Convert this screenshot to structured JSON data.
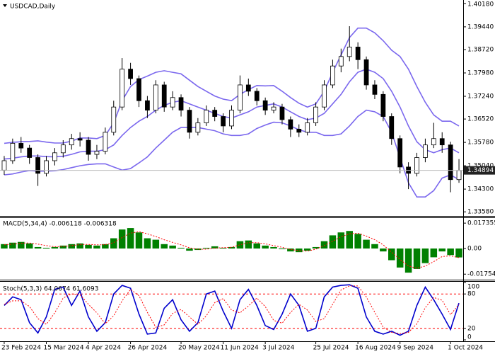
{
  "chart_data": [
    {
      "type": "candlestick",
      "title": "USDCAD,Daily",
      "xlim": [
        -0.5,
        54.5
      ],
      "xticks": [
        {
          "value": 0,
          "label": "23 Feb 2024"
        },
        {
          "value": 5,
          "label": "15 Mar 2024"
        },
        {
          "value": 10,
          "label": "4 Apr 2024"
        },
        {
          "value": 15,
          "label": "26 Apr 2024"
        },
        {
          "value": 21,
          "label": "20 May 2024"
        },
        {
          "value": 26,
          "label": "11 Jun 2024"
        },
        {
          "value": 31,
          "label": "3 Jul 2024"
        },
        {
          "value": 37,
          "label": "25 Jul 2024"
        },
        {
          "value": 42,
          "label": "16 Aug 2024"
        },
        {
          "value": 47,
          "label": "9 Sep 2024"
        },
        {
          "value": 53,
          "label": "1 Oct 2024"
        }
      ],
      "ylim": [
        1.3345,
        1.4029
      ],
      "yticks": [
        {
          "value": 1.4018,
          "label": "1.40180"
        },
        {
          "value": 1.3944,
          "label": "1.39440"
        },
        {
          "value": 1.3872,
          "label": "1.38720"
        },
        {
          "value": 1.3798,
          "label": "1.37980"
        },
        {
          "value": 1.3724,
          "label": "1.37240"
        },
        {
          "value": 1.3652,
          "label": "1.36520"
        },
        {
          "value": 1.3578,
          "label": "1.35780"
        },
        {
          "value": 1.3504,
          "label": "1.35040"
        },
        {
          "value": 1.343,
          "label": "1.34300"
        },
        {
          "value": 1.3358,
          "label": "1.33580"
        }
      ],
      "last_price": 1.34894,
      "band_color": "#7b68ee",
      "open": [
        1.349,
        1.352,
        1.3575,
        1.356,
        1.353,
        1.348,
        1.352,
        1.3545,
        1.357,
        1.359,
        1.3585,
        1.354,
        1.355,
        1.361,
        1.369,
        1.381,
        1.378,
        1.371,
        1.368,
        1.376,
        1.369,
        1.372,
        1.368,
        1.361,
        1.364,
        1.368,
        1.366,
        1.363,
        1.368,
        1.376,
        1.374,
        1.371,
        1.368,
        1.369,
        1.365,
        1.362,
        1.361,
        1.364,
        1.369,
        1.376,
        1.382,
        1.385,
        1.388,
        1.384,
        1.376,
        1.373,
        1.366,
        1.359,
        1.35,
        1.348,
        1.353,
        1.357,
        1.359,
        1.357,
        1.346
      ],
      "high": [
        1.3535,
        1.359,
        1.3595,
        1.357,
        1.354,
        1.3535,
        1.356,
        1.3585,
        1.3605,
        1.361,
        1.3595,
        1.357,
        1.3625,
        1.371,
        1.3845,
        1.383,
        1.379,
        1.3725,
        1.3775,
        1.377,
        1.374,
        1.373,
        1.369,
        1.3655,
        1.3695,
        1.369,
        1.367,
        1.3695,
        1.379,
        1.378,
        1.375,
        1.372,
        1.3705,
        1.37,
        1.366,
        1.3635,
        1.3655,
        1.3705,
        1.3775,
        1.384,
        1.3875,
        1.3946,
        1.3895,
        1.385,
        1.3775,
        1.374,
        1.367,
        1.36,
        1.3515,
        1.3545,
        1.359,
        1.364,
        1.361,
        1.358,
        1.3525
      ],
      "low": [
        1.3475,
        1.351,
        1.3545,
        1.351,
        1.344,
        1.347,
        1.3505,
        1.353,
        1.3555,
        1.3565,
        1.352,
        1.3525,
        1.354,
        1.36,
        1.368,
        1.376,
        1.369,
        1.3655,
        1.367,
        1.3675,
        1.368,
        1.366,
        1.359,
        1.36,
        1.363,
        1.3645,
        1.361,
        1.362,
        1.367,
        1.3725,
        1.3695,
        1.3665,
        1.367,
        1.3635,
        1.3595,
        1.3595,
        1.36,
        1.363,
        1.368,
        1.375,
        1.38,
        1.3835,
        1.381,
        1.3745,
        1.3715,
        1.3645,
        1.357,
        1.348,
        1.343,
        1.347,
        1.3515,
        1.356,
        1.3545,
        1.342,
        1.345
      ],
      "close": [
        1.352,
        1.3575,
        1.356,
        1.353,
        1.348,
        1.352,
        1.3545,
        1.357,
        1.359,
        1.3585,
        1.354,
        1.355,
        1.361,
        1.369,
        1.381,
        1.378,
        1.371,
        1.368,
        1.376,
        1.369,
        1.372,
        1.368,
        1.361,
        1.364,
        1.368,
        1.366,
        1.363,
        1.368,
        1.376,
        1.374,
        1.371,
        1.368,
        1.369,
        1.365,
        1.362,
        1.361,
        1.364,
        1.369,
        1.376,
        1.382,
        1.385,
        1.388,
        1.384,
        1.376,
        1.373,
        1.366,
        1.359,
        1.35,
        1.348,
        1.353,
        1.357,
        1.359,
        1.357,
        1.346,
        1.3489
      ],
      "upper": [
        1.3575,
        1.3578,
        1.358,
        1.3581,
        1.3583,
        1.3579,
        1.3576,
        1.3576,
        1.3582,
        1.3592,
        1.3592,
        1.359,
        1.36,
        1.364,
        1.371,
        1.3755,
        1.3777,
        1.3788,
        1.38,
        1.3805,
        1.38,
        1.3795,
        1.3775,
        1.3755,
        1.374,
        1.3725,
        1.3715,
        1.371,
        1.373,
        1.3745,
        1.3758,
        1.3757,
        1.3758,
        1.374,
        1.372,
        1.3702,
        1.369,
        1.37,
        1.374,
        1.38,
        1.3855,
        1.391,
        1.394,
        1.394,
        1.3925,
        1.39,
        1.387,
        1.385,
        1.381,
        1.3755,
        1.3705,
        1.3665,
        1.3645,
        1.3645,
        1.363
      ],
      "middle": [
        1.3525,
        1.3528,
        1.3532,
        1.3535,
        1.3535,
        1.3533,
        1.3532,
        1.3534,
        1.354,
        1.3548,
        1.355,
        1.355,
        1.3555,
        1.357,
        1.36,
        1.3625,
        1.3645,
        1.366,
        1.368,
        1.3695,
        1.3705,
        1.371,
        1.37,
        1.369,
        1.368,
        1.367,
        1.366,
        1.3655,
        1.3665,
        1.3675,
        1.369,
        1.3695,
        1.37,
        1.369,
        1.3675,
        1.366,
        1.365,
        1.3655,
        1.367,
        1.37,
        1.373,
        1.377,
        1.38,
        1.381,
        1.38,
        1.378,
        1.374,
        1.369,
        1.363,
        1.358,
        1.3555,
        1.3545,
        1.3555,
        1.356,
        1.3545
      ],
      "lower": [
        1.3475,
        1.3478,
        1.3484,
        1.3489,
        1.3487,
        1.3487,
        1.3488,
        1.3492,
        1.3498,
        1.3504,
        1.3508,
        1.351,
        1.351,
        1.35,
        1.349,
        1.3495,
        1.3513,
        1.3532,
        1.356,
        1.3585,
        1.361,
        1.3625,
        1.3625,
        1.3625,
        1.362,
        1.3615,
        1.3605,
        1.36,
        1.36,
        1.3605,
        1.3622,
        1.3633,
        1.3642,
        1.364,
        1.363,
        1.3618,
        1.361,
        1.361,
        1.36,
        1.36,
        1.3605,
        1.363,
        1.366,
        1.368,
        1.3675,
        1.366,
        1.361,
        1.353,
        1.345,
        1.3405,
        1.3405,
        1.3425,
        1.3465,
        1.3475,
        1.346
      ]
    },
    {
      "type": "macd",
      "title": "MACD(5,34,4) -0.006118 -0.006318",
      "ylim": [
        -0.0213,
        0.0213
      ],
      "yticks": [
        0.017355,
        {
          "value": 0,
          "label": "0.00"
        },
        -0.017542
      ],
      "color": "#008000",
      "signal_color": "#ff0000",
      "histogram": [
        0.003,
        0.004,
        0.0045,
        0.0035,
        0.001,
        0.0005,
        0.001,
        0.002,
        0.003,
        0.0035,
        0.0025,
        0.002,
        0.003,
        0.007,
        0.013,
        0.014,
        0.011,
        0.007,
        0.006,
        0.003,
        0.002,
        0.0005,
        -0.0015,
        -0.001,
        0.0005,
        0.0015,
        0.0005,
        0.001,
        0.005,
        0.0055,
        0.0035,
        0.002,
        0.001,
        -0.0005,
        -0.002,
        -0.0025,
        -0.0015,
        0.001,
        0.005,
        0.009,
        0.011,
        0.012,
        0.01,
        0.006,
        0.003,
        -0.002,
        -0.008,
        -0.013,
        -0.0165,
        -0.014,
        -0.01,
        -0.006,
        -0.002,
        -0.0045,
        -0.0061
      ],
      "signal": [
        0.0025,
        0.003,
        0.0037,
        0.0038,
        0.003,
        0.002,
        0.0012,
        0.0014,
        0.002,
        0.0027,
        0.0028,
        0.0025,
        0.0026,
        0.004,
        0.0075,
        0.0105,
        0.0115,
        0.01,
        0.0082,
        0.006,
        0.0042,
        0.0025,
        0.0005,
        -0.0005,
        -0.0005,
        0.0003,
        0.0006,
        0.0008,
        0.0025,
        0.004,
        0.004,
        0.0032,
        0.002,
        0.0008,
        -0.0006,
        -0.0015,
        -0.0018,
        -0.0005,
        0.002,
        0.005,
        0.008,
        0.01,
        0.0105,
        0.0085,
        0.006,
        0.0025,
        -0.0025,
        -0.0075,
        -0.012,
        -0.0135,
        -0.012,
        -0.009,
        -0.0055,
        -0.005,
        -0.0063
      ]
    },
    {
      "type": "stochastic",
      "title": "Stoch(5,3,3) 64.0674 61.6093",
      "ylim": [
        0,
        100
      ],
      "yticks": [
        100,
        80,
        20,
        0
      ],
      "levels": [
        20,
        80
      ],
      "color": "#0000cd",
      "signal_color": "#ff0000",
      "k": [
        60,
        75,
        70,
        30,
        12,
        40,
        88,
        92,
        60,
        85,
        40,
        15,
        30,
        80,
        95,
        90,
        45,
        10,
        12,
        55,
        70,
        35,
        15,
        30,
        80,
        85,
        50,
        20,
        70,
        88,
        60,
        25,
        18,
        45,
        80,
        60,
        15,
        20,
        75,
        92,
        95,
        96,
        90,
        40,
        15,
        10,
        15,
        8,
        15,
        60,
        92,
        70,
        45,
        18,
        64.07
      ],
      "d": [
        62,
        68,
        68,
        58,
        37,
        27,
        47,
        73,
        80,
        79,
        62,
        47,
        28,
        42,
        68,
        88,
        77,
        48,
        22,
        26,
        46,
        53,
        40,
        27,
        42,
        65,
        72,
        52,
        47,
        59,
        73,
        58,
        34,
        29,
        48,
        62,
        52,
        32,
        37,
        62,
        87,
        94,
        94,
        75,
        48,
        22,
        13,
        11,
        13,
        28,
        56,
        74,
        69,
        44,
        61.61
      ]
    }
  ]
}
